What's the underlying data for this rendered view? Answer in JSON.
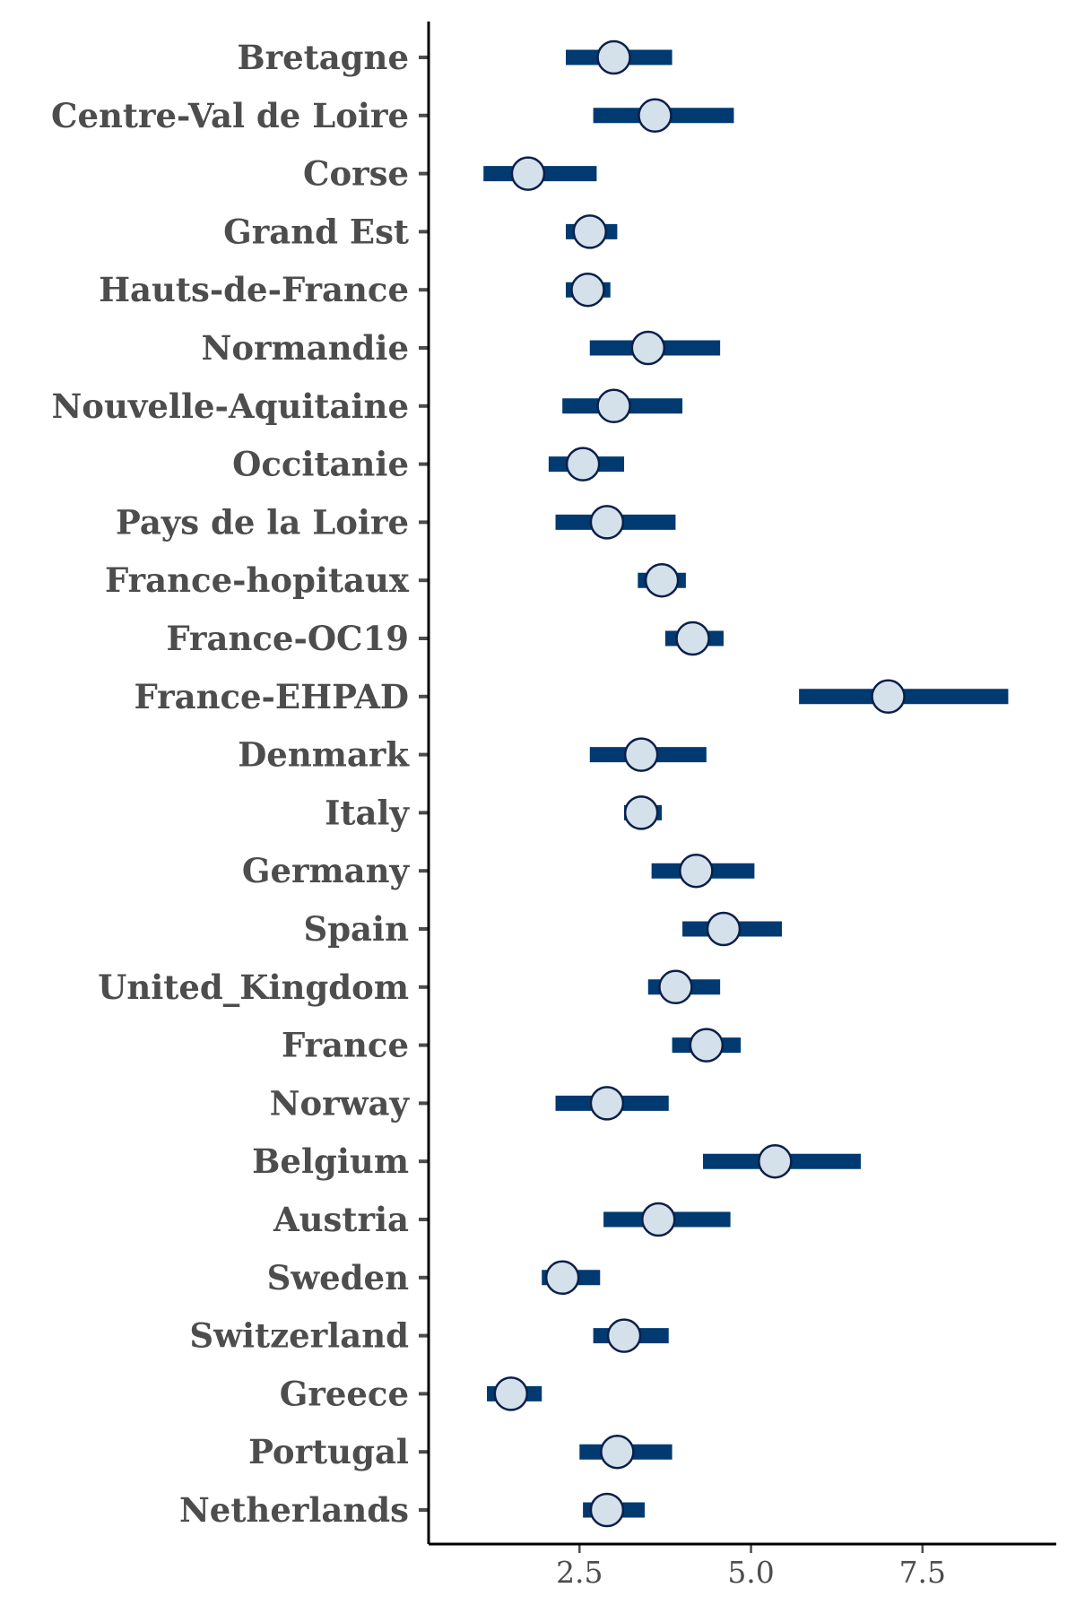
{
  "chart_data": {
    "type": "scatter",
    "subtype": "point-range",
    "title": "",
    "xlabel": "",
    "ylabel": "",
    "xlim": [
      0.3,
      9.45
    ],
    "xticks": [
      2.5,
      5.0,
      7.5
    ],
    "xtick_labels": [
      "2.5",
      "5.0",
      "7.5"
    ],
    "grid": false,
    "legend": "none",
    "colors": {
      "interval": "#003a70",
      "point_fill": "#d4e1ea",
      "point_stroke": "#0b1f4a",
      "text": "#4d4d4d",
      "axis": "#000000"
    },
    "categories": [
      "Bretagne",
      "Centre-Val de Loire",
      "Corse",
      "Grand Est",
      "Hauts-de-France",
      "Normandie",
      "Nouvelle-Aquitaine",
      "Occitanie",
      "Pays de la Loire",
      "France-hopitaux",
      "France-OC19",
      "France-EHPAD",
      "Denmark",
      "Italy",
      "Germany",
      "Spain",
      "United_Kingdom",
      "France",
      "Norway",
      "Belgium",
      "Austria",
      "Sweden",
      "Switzerland",
      "Greece",
      "Portugal",
      "Netherlands"
    ],
    "estimate": [
      3.0,
      3.6,
      1.75,
      2.65,
      2.62,
      3.5,
      3.0,
      2.55,
      2.9,
      3.7,
      4.15,
      7.0,
      3.4,
      3.4,
      4.2,
      4.6,
      3.9,
      4.35,
      2.9,
      5.35,
      3.65,
      2.25,
      3.15,
      1.5,
      3.05,
      2.9
    ],
    "lower": [
      2.3,
      2.7,
      1.1,
      2.3,
      2.3,
      2.65,
      2.25,
      2.05,
      2.15,
      3.35,
      3.75,
      5.7,
      2.65,
      3.15,
      3.55,
      4.0,
      3.5,
      3.85,
      2.15,
      4.3,
      2.85,
      1.95,
      2.7,
      1.15,
      2.5,
      2.55
    ],
    "upper": [
      3.85,
      4.75,
      2.75,
      3.05,
      2.95,
      4.55,
      4.0,
      3.15,
      3.9,
      4.05,
      4.6,
      8.75,
      4.35,
      3.7,
      5.05,
      5.45,
      4.55,
      4.85,
      3.8,
      6.6,
      4.7,
      2.8,
      3.8,
      1.95,
      3.85,
      3.45
    ]
  }
}
